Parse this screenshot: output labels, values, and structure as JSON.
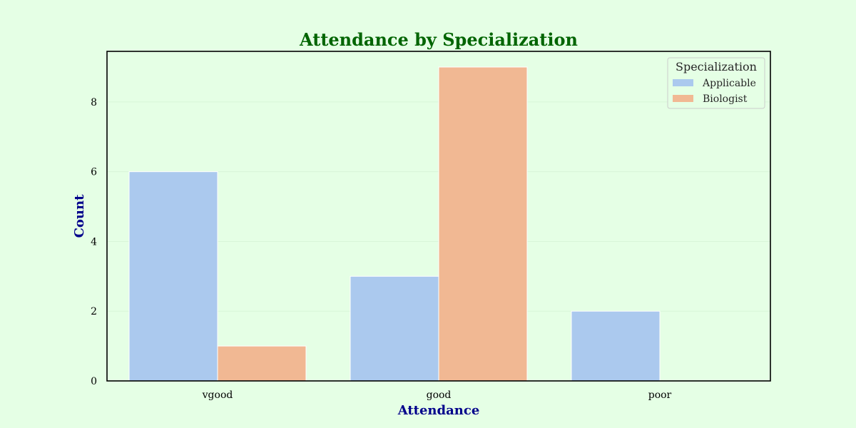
{
  "colors": {
    "background": "#e5ffe5",
    "title": "#006400",
    "axis_label": "#00008b",
    "grid": "#d8f5d8"
  },
  "chart_data": {
    "type": "bar",
    "title": "Attendance by Specialization",
    "xlabel": "Attendance",
    "ylabel": "Count",
    "categories": [
      "vgood",
      "good",
      "poor"
    ],
    "series": [
      {
        "name": "Applicable",
        "values": [
          6,
          3,
          2
        ],
        "color": "#abc9ee"
      },
      {
        "name": "Biologist",
        "values": [
          1,
          9,
          0
        ],
        "color": "#f1b893"
      }
    ],
    "ylim": [
      0,
      9.45
    ],
    "yticks": [
      0,
      2,
      4,
      6,
      8
    ],
    "grid": true,
    "legend": {
      "title": "Specialization",
      "placement": "top-right"
    }
  }
}
